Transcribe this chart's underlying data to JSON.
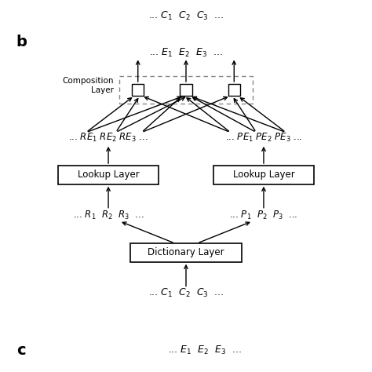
{
  "bg_color": "#ffffff",
  "figsize": [
    4.74,
    4.74
  ],
  "dpi": 100,
  "label_b": "b",
  "label_c": "c",
  "lookup_layer_label": "Lookup Layer",
  "dict_layer_label": "Dictionary Layer",
  "comp_layer_label": "Composition\nLayer"
}
